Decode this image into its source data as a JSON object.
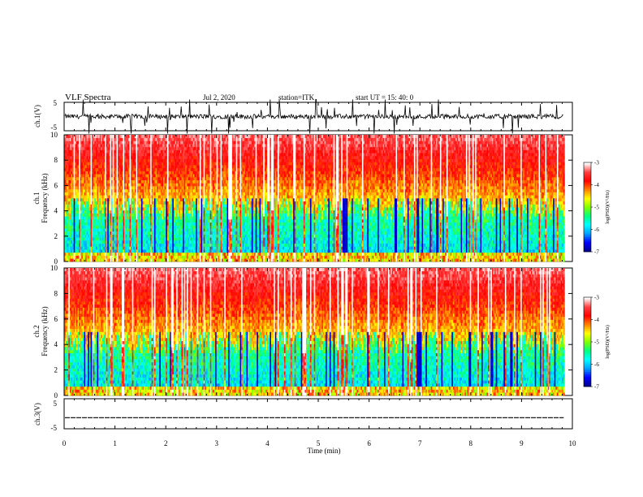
{
  "chart_data": {
    "type": "heatmap",
    "header": {
      "title": "VLF Spectra",
      "date": "Jul   2, 2020",
      "station": "station=ITK",
      "start": "start  UT  =   15: 40: 0"
    },
    "x": {
      "label": "Time  (min)",
      "range": [
        0,
        10
      ],
      "ticks": [
        "0",
        "1",
        "2",
        "3",
        "4",
        "5",
        "6",
        "7",
        "8",
        "9",
        "10"
      ],
      "data_end": 9.83
    },
    "panels": [
      {
        "id": "ch1-waveform",
        "type": "line",
        "ylabel": "ch.1(V)",
        "ylim": [
          -5,
          5
        ],
        "yticks": [
          "5",
          "-5"
        ]
      },
      {
        "id": "ch1-spectrogram",
        "type": "heatmap",
        "ylabel_top": "ch.1",
        "ylabel": "Frequency  (kHz)",
        "ylim": [
          0,
          10
        ],
        "yticks": [
          "0",
          "2",
          "4",
          "6",
          "8",
          "10"
        ]
      },
      {
        "id": "ch2-spectrogram",
        "type": "heatmap",
        "ylabel_top": "ch.2",
        "ylabel": "Frequency  (kHz)",
        "ylim": [
          0,
          10
        ],
        "yticks": [
          "0",
          "2",
          "4",
          "6",
          "8",
          "10"
        ]
      },
      {
        "id": "ch3-waveform",
        "type": "line",
        "ylabel": "ch.3(V)",
        "ylim": [
          -5,
          5
        ],
        "yticks": [
          "5",
          "-5"
        ],
        "level": -1.3
      }
    ],
    "colorbar": {
      "label": "log(PSD)(V²/Hz)",
      "range": [
        -7,
        -3
      ],
      "ticks": [
        "-3",
        "-4",
        "-5",
        "-6",
        "-7"
      ],
      "colors": [
        "#000090",
        "#0000ff",
        "#00a0ff",
        "#00ffff",
        "#00ff80",
        "#80ff00",
        "#ffff00",
        "#ff8000",
        "#ff0000",
        "#ff4040",
        "#ffffff"
      ]
    },
    "grid": false,
    "legend": "none"
  }
}
